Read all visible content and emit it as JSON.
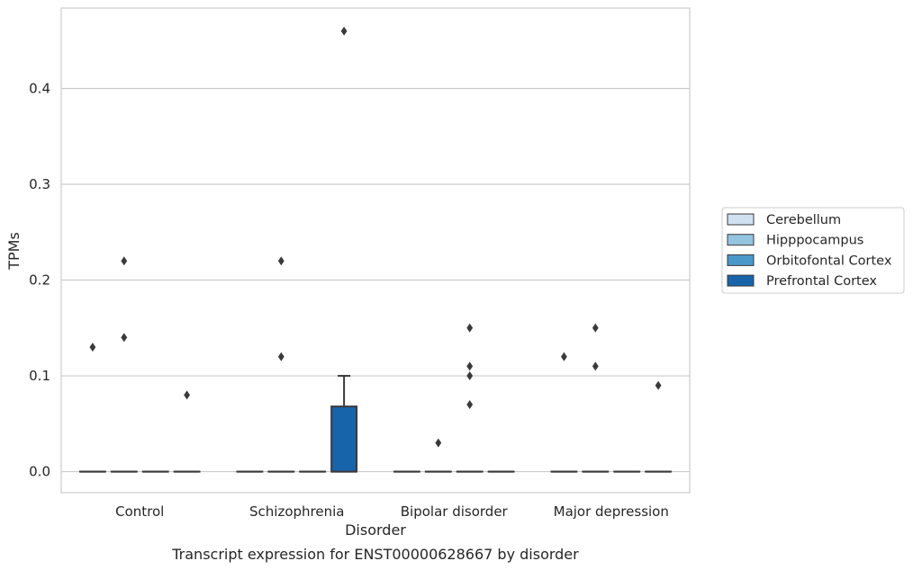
{
  "caption": "Transcript expression for ENST00000628667 by disorder",
  "chart_data": {
    "type": "box",
    "title": "",
    "xlabel": "Disorder",
    "ylabel": "TPMs",
    "ylim": [
      -0.022,
      0.484
    ],
    "yticks": [
      0.0,
      0.1,
      0.2,
      0.3,
      0.4
    ],
    "ytick_labels": [
      "0.0",
      "0.1",
      "0.2",
      "0.3",
      "0.4"
    ],
    "grid": "horizontal",
    "legend_position": "right",
    "categories": [
      "Control",
      "Schizophrenia",
      "Bipolar disorder",
      "Major depression"
    ],
    "series": [
      {
        "name": "Cerebellum",
        "color": "#d0e1f2",
        "boxes": [
          {
            "q1": 0,
            "median": 0,
            "q3": 0,
            "whisker_low": 0,
            "whisker_high": 0,
            "outliers": [
              0.13
            ]
          },
          {
            "q1": 0,
            "median": 0,
            "q3": 0,
            "whisker_low": 0,
            "whisker_high": 0,
            "outliers": []
          },
          {
            "q1": 0,
            "median": 0,
            "q3": 0,
            "whisker_low": 0,
            "whisker_high": 0,
            "outliers": []
          },
          {
            "q1": 0,
            "median": 0,
            "q3": 0,
            "whisker_low": 0,
            "whisker_high": 0,
            "outliers": [
              0.12
            ]
          }
        ]
      },
      {
        "name": "Hipppocampus",
        "color": "#94c4df",
        "boxes": [
          {
            "q1": 0,
            "median": 0,
            "q3": 0,
            "whisker_low": 0,
            "whisker_high": 0,
            "outliers": [
              0.22,
              0.14
            ]
          },
          {
            "q1": 0,
            "median": 0,
            "q3": 0,
            "whisker_low": 0,
            "whisker_high": 0,
            "outliers": [
              0.22,
              0.12
            ]
          },
          {
            "q1": 0,
            "median": 0,
            "q3": 0,
            "whisker_low": 0,
            "whisker_high": 0,
            "outliers": [
              0.03
            ]
          },
          {
            "q1": 0,
            "median": 0,
            "q3": 0,
            "whisker_low": 0,
            "whisker_high": 0,
            "outliers": [
              0.15,
              0.11
            ]
          }
        ]
      },
      {
        "name": "Orbitofontal Cortex",
        "color": "#4a98c9",
        "boxes": [
          {
            "q1": 0,
            "median": 0,
            "q3": 0,
            "whisker_low": 0,
            "whisker_high": 0,
            "outliers": []
          },
          {
            "q1": 0,
            "median": 0,
            "q3": 0,
            "whisker_low": 0,
            "whisker_high": 0,
            "outliers": []
          },
          {
            "q1": 0,
            "median": 0,
            "q3": 0,
            "whisker_low": 0,
            "whisker_high": 0,
            "outliers": [
              0.15,
              0.11,
              0.1,
              0.07
            ]
          },
          {
            "q1": 0,
            "median": 0,
            "q3": 0,
            "whisker_low": 0,
            "whisker_high": 0,
            "outliers": []
          }
        ]
      },
      {
        "name": "Prefrontal Cortex",
        "color": "#1764ab",
        "boxes": [
          {
            "q1": 0,
            "median": 0,
            "q3": 0,
            "whisker_low": 0,
            "whisker_high": 0,
            "outliers": [
              0.08
            ]
          },
          {
            "q1": 0,
            "median": 0,
            "q3": 0.068,
            "whisker_low": 0,
            "whisker_high": 0.1,
            "outliers": [
              0.46
            ]
          },
          {
            "q1": 0,
            "median": 0,
            "q3": 0,
            "whisker_low": 0,
            "whisker_high": 0,
            "outliers": []
          },
          {
            "q1": 0,
            "median": 0,
            "q3": 0,
            "whisker_low": 0,
            "whisker_high": 0,
            "outliers": [
              0.09
            ]
          }
        ]
      }
    ]
  }
}
